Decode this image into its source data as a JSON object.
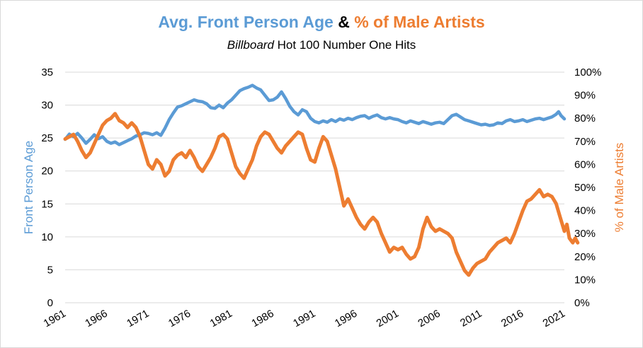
{
  "chart_data": {
    "type": "line",
    "title": {
      "part1": "Avg. Front Person Age",
      "joiner": "&",
      "part2": "% of Male Artists"
    },
    "subtitle": {
      "italic": "Billboard",
      "rest": " Hot 100 Number One Hits"
    },
    "colors": {
      "age": "#5b9bd5",
      "male": "#ed7d31",
      "joiner": "#000000"
    },
    "x_ticks": [
      "1961",
      "1966",
      "1971",
      "1976",
      "1981",
      "1986",
      "1991",
      "1996",
      "2001",
      "2006",
      "2011",
      "2016",
      "2021"
    ],
    "xlim": [
      1961,
      2021
    ],
    "y_left": {
      "label": "Front Person Age",
      "ticks": [
        "0",
        "5",
        "10",
        "15",
        "20",
        "25",
        "30",
        "35"
      ],
      "range": [
        0,
        35
      ]
    },
    "y_right": {
      "label": "% of Male Artists",
      "ticks": [
        "0%",
        "10%",
        "20%",
        "30%",
        "40%",
        "50%",
        "60%",
        "70%",
        "80%",
        "90%",
        "100%"
      ],
      "range": [
        0,
        100
      ]
    },
    "grid": "horizontal",
    "series": [
      {
        "axis": "left",
        "points": [
          [
            1961,
            24.8
          ],
          [
            1961.5,
            25.6
          ],
          [
            1962,
            25.2
          ],
          [
            1962.5,
            25.7
          ],
          [
            1963,
            25.0
          ],
          [
            1963.5,
            24.2
          ],
          [
            1964,
            24.8
          ],
          [
            1964.5,
            25.5
          ],
          [
            1965,
            24.9
          ],
          [
            1965.5,
            25.2
          ],
          [
            1966,
            24.5
          ],
          [
            1966.5,
            24.2
          ],
          [
            1967,
            24.4
          ],
          [
            1967.5,
            24.0
          ],
          [
            1968,
            24.3
          ],
          [
            1968.5,
            24.6
          ],
          [
            1969,
            24.9
          ],
          [
            1969.5,
            25.3
          ],
          [
            1970,
            25.5
          ],
          [
            1970.5,
            25.8
          ],
          [
            1971,
            25.7
          ],
          [
            1971.5,
            25.5
          ],
          [
            1972,
            25.8
          ],
          [
            1972.5,
            25.4
          ],
          [
            1973,
            26.5
          ],
          [
            1973.5,
            27.8
          ],
          [
            1974,
            28.8
          ],
          [
            1974.5,
            29.7
          ],
          [
            1975,
            29.9
          ],
          [
            1975.5,
            30.2
          ],
          [
            1976,
            30.5
          ],
          [
            1976.5,
            30.8
          ],
          [
            1977,
            30.6
          ],
          [
            1977.5,
            30.5
          ],
          [
            1978,
            30.2
          ],
          [
            1978.5,
            29.6
          ],
          [
            1979,
            29.5
          ],
          [
            1979.5,
            30.0
          ],
          [
            1980,
            29.6
          ],
          [
            1980.5,
            30.3
          ],
          [
            1981,
            30.8
          ],
          [
            1981.5,
            31.5
          ],
          [
            1982,
            32.2
          ],
          [
            1982.5,
            32.5
          ],
          [
            1983,
            32.7
          ],
          [
            1983.5,
            33.0
          ],
          [
            1984,
            32.6
          ],
          [
            1984.5,
            32.3
          ],
          [
            1985,
            31.5
          ],
          [
            1985.5,
            30.7
          ],
          [
            1986,
            30.8
          ],
          [
            1986.5,
            31.2
          ],
          [
            1987,
            32.0
          ],
          [
            1987.5,
            31.0
          ],
          [
            1988,
            29.8
          ],
          [
            1988.5,
            29.0
          ],
          [
            1989,
            28.5
          ],
          [
            1989.5,
            29.3
          ],
          [
            1990,
            29.0
          ],
          [
            1990.5,
            28.0
          ],
          [
            1991,
            27.5
          ],
          [
            1991.5,
            27.3
          ],
          [
            1992,
            27.6
          ],
          [
            1992.5,
            27.4
          ],
          [
            1993,
            27.8
          ],
          [
            1993.5,
            27.5
          ],
          [
            1994,
            27.9
          ],
          [
            1994.5,
            27.7
          ],
          [
            1995,
            28.0
          ],
          [
            1995.5,
            27.8
          ],
          [
            1996,
            28.1
          ],
          [
            1996.5,
            28.3
          ],
          [
            1997,
            28.4
          ],
          [
            1997.5,
            28.0
          ],
          [
            1998,
            28.3
          ],
          [
            1998.5,
            28.5
          ],
          [
            1999,
            28.1
          ],
          [
            1999.5,
            27.9
          ],
          [
            2000,
            28.1
          ],
          [
            2000.5,
            27.9
          ],
          [
            2001,
            27.8
          ],
          [
            2001.5,
            27.5
          ],
          [
            2002,
            27.3
          ],
          [
            2002.5,
            27.6
          ],
          [
            2003,
            27.4
          ],
          [
            2003.5,
            27.2
          ],
          [
            2004,
            27.5
          ],
          [
            2004.5,
            27.3
          ],
          [
            2005,
            27.1
          ],
          [
            2005.5,
            27.3
          ],
          [
            2006,
            27.4
          ],
          [
            2006.5,
            27.2
          ],
          [
            2007,
            27.8
          ],
          [
            2007.5,
            28.4
          ],
          [
            2008,
            28.6
          ],
          [
            2008.5,
            28.2
          ],
          [
            2009,
            27.8
          ],
          [
            2009.5,
            27.6
          ],
          [
            2010,
            27.4
          ],
          [
            2010.5,
            27.2
          ],
          [
            2011,
            27.0
          ],
          [
            2011.5,
            27.1
          ],
          [
            2012,
            26.9
          ],
          [
            2012.5,
            27.0
          ],
          [
            2013,
            27.3
          ],
          [
            2013.5,
            27.2
          ],
          [
            2014,
            27.6
          ],
          [
            2014.5,
            27.8
          ],
          [
            2015,
            27.5
          ],
          [
            2015.5,
            27.6
          ],
          [
            2016,
            27.8
          ],
          [
            2016.5,
            27.5
          ],
          [
            2017,
            27.7
          ],
          [
            2017.5,
            27.9
          ],
          [
            2018,
            28.0
          ],
          [
            2018.5,
            27.8
          ],
          [
            2019,
            28.0
          ],
          [
            2019.5,
            28.2
          ],
          [
            2020,
            28.6
          ],
          [
            2020.3,
            29.0
          ],
          [
            2020.6,
            28.4
          ],
          [
            2021,
            27.9
          ]
        ]
      },
      {
        "axis": "right",
        "points": [
          [
            1961,
            71
          ],
          [
            1961.5,
            72
          ],
          [
            1962,
            73
          ],
          [
            1962.5,
            70
          ],
          [
            1963,
            66
          ],
          [
            1963.5,
            63
          ],
          [
            1964,
            65
          ],
          [
            1964.5,
            69
          ],
          [
            1965,
            73
          ],
          [
            1965.5,
            77
          ],
          [
            1966,
            79
          ],
          [
            1966.5,
            80
          ],
          [
            1967,
            82
          ],
          [
            1967.5,
            79
          ],
          [
            1968,
            78
          ],
          [
            1968.5,
            76
          ],
          [
            1969,
            78
          ],
          [
            1969.5,
            76
          ],
          [
            1970,
            72
          ],
          [
            1970.5,
            66
          ],
          [
            1971,
            60
          ],
          [
            1971.5,
            58
          ],
          [
            1972,
            62
          ],
          [
            1972.5,
            60
          ],
          [
            1973,
            55
          ],
          [
            1973.5,
            57
          ],
          [
            1974,
            62
          ],
          [
            1974.5,
            64
          ],
          [
            1975,
            65
          ],
          [
            1975.5,
            63
          ],
          [
            1976,
            66
          ],
          [
            1976.5,
            63
          ],
          [
            1977,
            59
          ],
          [
            1977.5,
            57
          ],
          [
            1978,
            60
          ],
          [
            1978.5,
            63
          ],
          [
            1979,
            67
          ],
          [
            1979.5,
            72
          ],
          [
            1980,
            73
          ],
          [
            1980.5,
            71
          ],
          [
            1981,
            65
          ],
          [
            1981.5,
            59
          ],
          [
            1982,
            56
          ],
          [
            1982.5,
            54
          ],
          [
            1983,
            58
          ],
          [
            1983.5,
            62
          ],
          [
            1984,
            68
          ],
          [
            1984.5,
            72
          ],
          [
            1985,
            74
          ],
          [
            1985.5,
            73
          ],
          [
            1986,
            70
          ],
          [
            1986.5,
            67
          ],
          [
            1987,
            65
          ],
          [
            1987.5,
            68
          ],
          [
            1988,
            70
          ],
          [
            1988.5,
            72
          ],
          [
            1989,
            74
          ],
          [
            1989.5,
            73
          ],
          [
            1990,
            67
          ],
          [
            1990.5,
            62
          ],
          [
            1991,
            61
          ],
          [
            1991.5,
            67
          ],
          [
            1992,
            72
          ],
          [
            1992.5,
            70
          ],
          [
            1993,
            64
          ],
          [
            1993.5,
            58
          ],
          [
            1994,
            50
          ],
          [
            1994.5,
            42
          ],
          [
            1995,
            45
          ],
          [
            1995.5,
            41
          ],
          [
            1996,
            37
          ],
          [
            1996.5,
            34
          ],
          [
            1997,
            32
          ],
          [
            1997.5,
            35
          ],
          [
            1998,
            37
          ],
          [
            1998.5,
            35
          ],
          [
            1999,
            30
          ],
          [
            1999.5,
            26
          ],
          [
            2000,
            22
          ],
          [
            2000.5,
            24
          ],
          [
            2001,
            23
          ],
          [
            2001.5,
            24
          ],
          [
            2002,
            21
          ],
          [
            2002.5,
            19
          ],
          [
            2003,
            20
          ],
          [
            2003.5,
            24
          ],
          [
            2004,
            32
          ],
          [
            2004.5,
            37
          ],
          [
            2005,
            33
          ],
          [
            2005.5,
            31
          ],
          [
            2006,
            32
          ],
          [
            2006.5,
            31
          ],
          [
            2007,
            30
          ],
          [
            2007.5,
            28
          ],
          [
            2008,
            22
          ],
          [
            2008.5,
            18
          ],
          [
            2009,
            14
          ],
          [
            2009.5,
            12
          ],
          [
            2010,
            15
          ],
          [
            2010.5,
            17
          ],
          [
            2011,
            18
          ],
          [
            2011.5,
            19
          ],
          [
            2012,
            22
          ],
          [
            2012.5,
            24
          ],
          [
            2013,
            26
          ],
          [
            2013.5,
            27
          ],
          [
            2014,
            28
          ],
          [
            2014.5,
            26
          ],
          [
            2015,
            30
          ],
          [
            2015.5,
            35
          ],
          [
            2016,
            40
          ],
          [
            2016.5,
            44
          ],
          [
            2017,
            45
          ],
          [
            2017.5,
            47
          ],
          [
            2018,
            49
          ],
          [
            2018.5,
            46
          ],
          [
            2019,
            47
          ],
          [
            2019.5,
            46
          ],
          [
            2020,
            43
          ],
          [
            2020.5,
            37
          ],
          [
            2021,
            31
          ],
          [
            2021.3,
            34
          ],
          [
            2021.6,
            28
          ],
          [
            2022,
            26
          ],
          [
            2022.3,
            28
          ],
          [
            2022.6,
            26
          ]
        ]
      }
    ]
  }
}
